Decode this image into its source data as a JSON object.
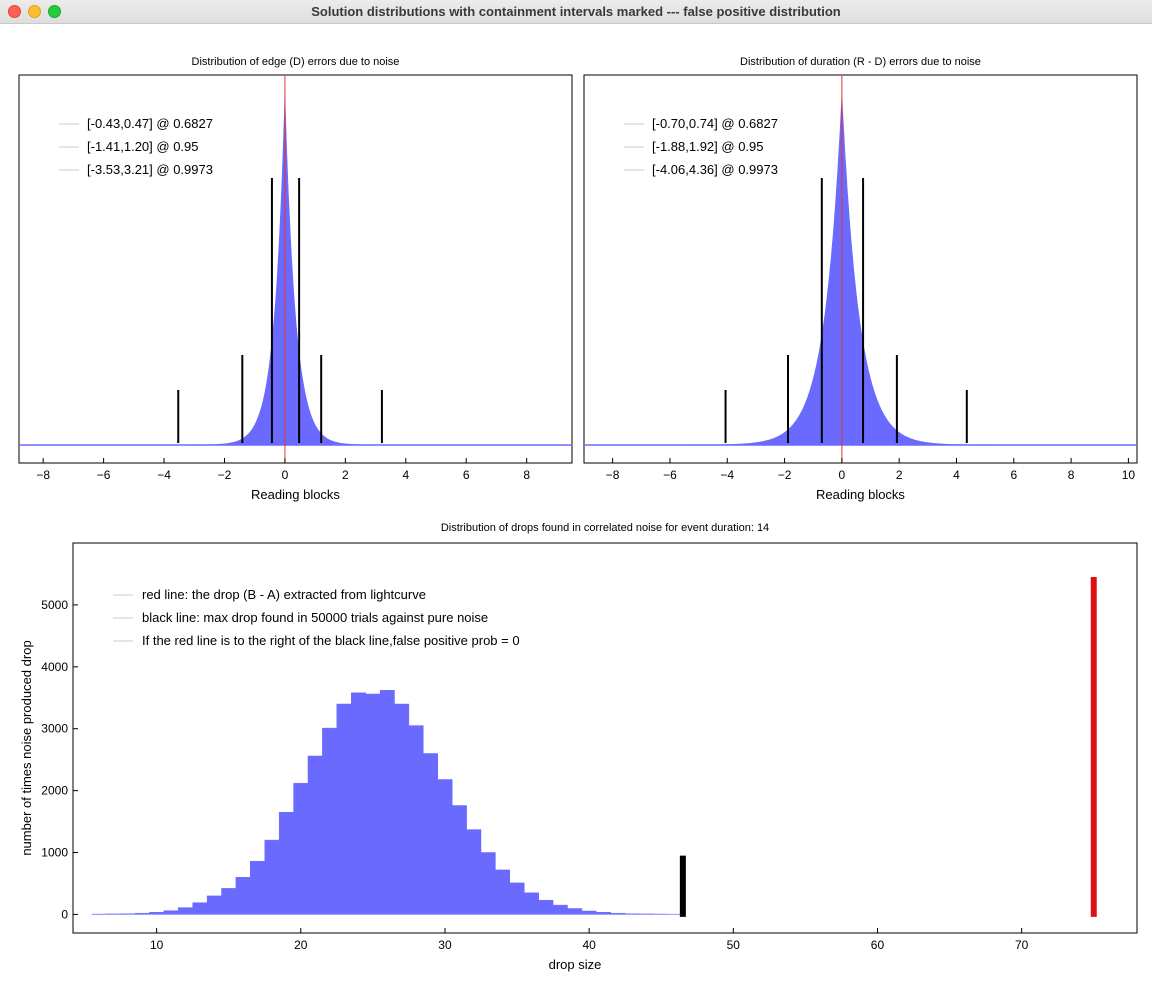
{
  "window": {
    "title": "Solution distributions with containment intervals marked --- false positive distribution"
  },
  "chart_data": [
    {
      "id": "edge",
      "type": "bar",
      "title": "Distribution of edge (D) errors due to noise",
      "xlabel": "Reading blocks",
      "ylabel": "",
      "xlim": [
        -8.8,
        9.5
      ],
      "xticks": [
        -8,
        -6,
        -4,
        -2,
        0,
        2,
        4,
        6,
        8
      ],
      "distribution": {
        "center": 0.0,
        "scale": 0.35,
        "step": 0.02
      },
      "center_line": 0,
      "intervals": [
        {
          "label": "[-0.43,0.47] @ 0.6827",
          "lo": -0.43,
          "hi": 0.47,
          "level": 0.6827
        },
        {
          "label": "[-1.41,1.20] @ 0.95",
          "lo": -1.41,
          "hi": 1.2,
          "level": 0.95
        },
        {
          "label": "[-3.53,3.21] @ 0.9973",
          "lo": -3.53,
          "hi": 3.21,
          "level": 0.9973
        }
      ],
      "colors": {
        "bars": "#6a6aff",
        "center": "#e8332e",
        "intervals": "#000000"
      },
      "legend_position": "top-left"
    },
    {
      "id": "duration",
      "type": "bar",
      "title": "Distribution of duration (R - D) errors due to noise",
      "xlabel": "Reading blocks",
      "ylabel": "",
      "xlim": [
        -9.0,
        10.3
      ],
      "xticks": [
        -8,
        -6,
        -4,
        -2,
        0,
        2,
        4,
        6,
        8,
        10
      ],
      "distribution": {
        "center": 0.0,
        "scale": 0.6,
        "step": 0.02
      },
      "center_line": 0,
      "intervals": [
        {
          "label": "[-0.70,0.74] @ 0.6827",
          "lo": -0.7,
          "hi": 0.74,
          "level": 0.6827
        },
        {
          "label": "[-1.88,1.92] @ 0.95",
          "lo": -1.88,
          "hi": 1.92,
          "level": 0.95
        },
        {
          "label": "[-4.06,4.36] @ 0.9973",
          "lo": -4.06,
          "hi": 4.36,
          "level": 0.9973
        }
      ],
      "colors": {
        "bars": "#6a6aff",
        "center": "#e8332e",
        "intervals": "#000000"
      },
      "legend_position": "top-left"
    },
    {
      "id": "drops",
      "type": "bar",
      "title": "Distribution of drops found in correlated noise for event duration: 14",
      "xlabel": "drop size",
      "ylabel": "number of times noise produced drop",
      "xlim": [
        4.2,
        78.0
      ],
      "ylim": [
        -300,
        6000
      ],
      "xticks": [
        10,
        20,
        30,
        40,
        50,
        60,
        70
      ],
      "yticks": [
        0,
        1000,
        2000,
        3000,
        4000,
        5000
      ],
      "bins": {
        "x": [
          6,
          7,
          8,
          9,
          10,
          11,
          12,
          13,
          14,
          15,
          16,
          17,
          18,
          19,
          20,
          21,
          22,
          23,
          24,
          25,
          26,
          27,
          28,
          29,
          30,
          31,
          32,
          33,
          34,
          35,
          36,
          37,
          38,
          39,
          40,
          41,
          42,
          43,
          44,
          45
        ],
        "values": [
          5,
          8,
          12,
          20,
          35,
          60,
          110,
          190,
          300,
          420,
          600,
          860,
          1200,
          1650,
          2120,
          2560,
          3010,
          3400,
          3580,
          3560,
          3620,
          3400,
          3050,
          2600,
          2180,
          1760,
          1370,
          1000,
          720,
          510,
          350,
          230,
          150,
          95,
          55,
          35,
          20,
          12,
          8,
          5
        ],
        "width": 1.0
      },
      "markers": {
        "max_noise_drop": 46.5,
        "max_noise_height": 950,
        "lightcurve_drop": 75.0,
        "lightcurve_height": 5450
      },
      "legend": [
        "red line: the drop (B - A) extracted from lightcurve",
        "black line: max drop found in 50000 trials against pure noise",
        "If the red line is to the right of the black line,false positive prob = 0"
      ],
      "colors": {
        "bars": "#6a6aff",
        "red_line": "#dd1111",
        "black_line": "#000000"
      },
      "legend_position": "top-left"
    }
  ]
}
